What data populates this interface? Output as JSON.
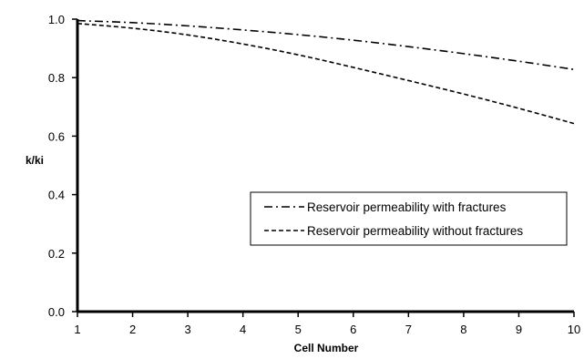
{
  "chart_data": {
    "type": "line",
    "xlabel": "Cell Number",
    "ylabel": "k/ki",
    "xlim": [
      1,
      10
    ],
    "ylim": [
      0.0,
      1.0
    ],
    "x_ticks": [
      1,
      2,
      3,
      4,
      5,
      6,
      7,
      8,
      9,
      10
    ],
    "y_ticks": [
      0.0,
      0.2,
      0.4,
      0.6,
      0.8,
      1.0
    ],
    "y_tick_labels": [
      "0.0",
      "0.2",
      "0.4",
      "0.6",
      "0.8",
      "1.0"
    ],
    "grid": false,
    "legend_position": "lower-right",
    "series": [
      {
        "name": "Reservoir permeability with fractures",
        "line_style": "dash-dot",
        "color": "#000000",
        "x": [
          1,
          2,
          3,
          4,
          5,
          6,
          7,
          8,
          9,
          10
        ],
        "y": [
          0.995,
          0.988,
          0.977,
          0.963,
          0.947,
          0.928,
          0.906,
          0.882,
          0.856,
          0.828
        ]
      },
      {
        "name": "Reservoir permeability without fractures",
        "line_style": "dashed",
        "color": "#000000",
        "x": [
          1,
          2,
          3,
          4,
          5,
          6,
          7,
          8,
          9,
          10
        ],
        "y": [
          0.985,
          0.969,
          0.946,
          0.915,
          0.878,
          0.835,
          0.79,
          0.744,
          0.695,
          0.643
        ]
      }
    ]
  }
}
